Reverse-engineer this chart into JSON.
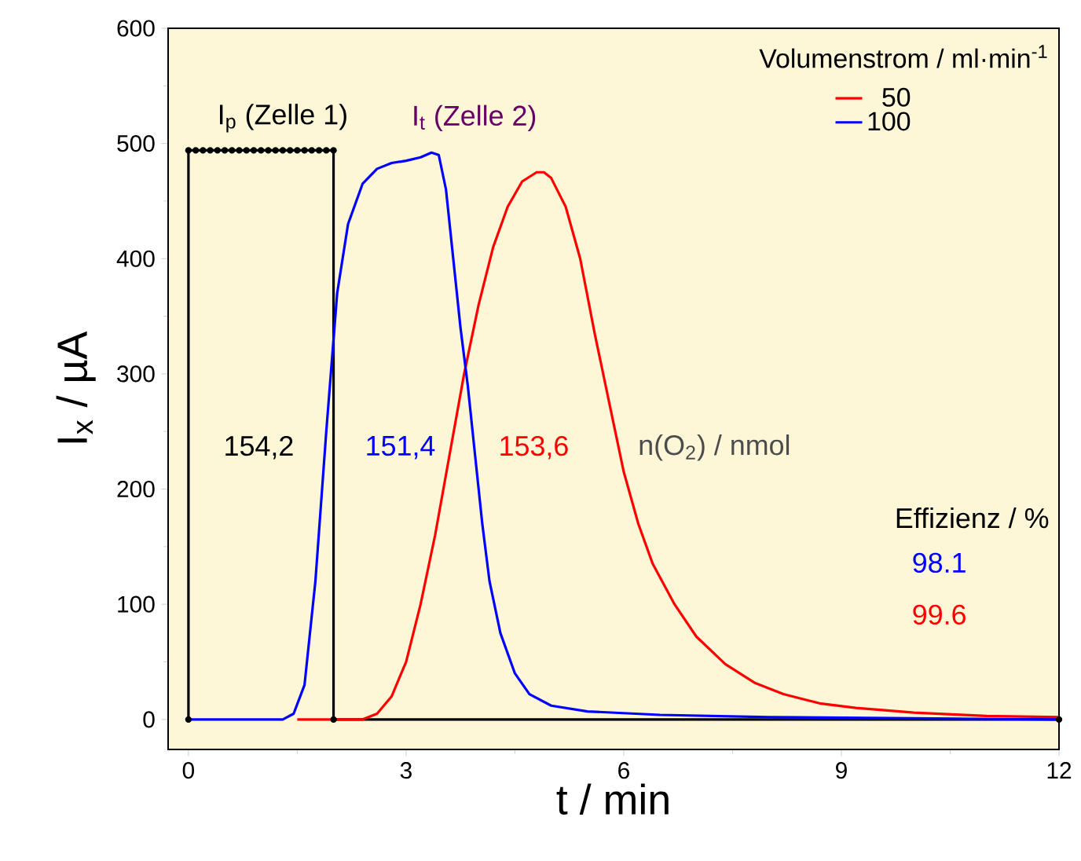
{
  "chart_data": {
    "type": "line",
    "xlabel": "t / min",
    "ylabel": "I$_{x}$ / µA",
    "legend_title": "Volumenstrom / ml·min$^{-1}$",
    "legend": "top right",
    "xlim": [
      -0.28,
      12
    ],
    "ylim": [
      -26,
      600
    ],
    "xticks": [
      0,
      3,
      6,
      9,
      12
    ],
    "yticks": [
      0,
      100,
      200,
      300,
      400,
      500,
      600
    ],
    "annotations": [
      "I$_{p}$ (Zelle 1)",
      "I$_{t}$ (Zelle 2)",
      "154,2",
      "151,4",
      "153,6",
      "n(O$_{2}$) / nmol",
      "Effizienz / %",
      "98.1",
      "99.6"
    ],
    "series": [
      {
        "color": "#000000",
        "marker": "circle",
        "x": [
          0,
          0,
          0.1,
          0.2,
          0.3,
          0.4,
          0.5,
          0.6,
          0.7,
          0.8,
          0.9,
          1.0,
          1.1,
          1.2,
          1.3,
          1.4,
          1.5,
          1.6,
          1.7,
          1.8,
          1.9,
          2,
          2,
          12
        ],
        "values": [
          0,
          494,
          494,
          494,
          494,
          494,
          494,
          494,
          494,
          494,
          494,
          494,
          494,
          494,
          494,
          494,
          494,
          494,
          494,
          494,
          494,
          494,
          0,
          0
        ]
      },
      {
        "name": "50",
        "color": "#ff0000",
        "x": [
          1.5,
          2.4,
          2.6,
          2.8,
          3.0,
          3.2,
          3.4,
          3.6,
          3.8,
          4.0,
          4.2,
          4.4,
          4.6,
          4.8,
          4.9,
          5.0,
          5.2,
          5.4,
          5.6,
          5.8,
          6.0,
          6.2,
          6.4,
          6.7,
          7.0,
          7.4,
          7.8,
          8.2,
          8.7,
          9.2,
          10,
          11,
          12
        ],
        "values": [
          0,
          0,
          5,
          20,
          50,
          100,
          160,
          230,
          300,
          360,
          410,
          445,
          467,
          475,
          475,
          470,
          445,
          400,
          335,
          275,
          215,
          170,
          135,
          100,
          72,
          48,
          32,
          22,
          14,
          10,
          6,
          3,
          2
        ]
      },
      {
        "name": "100",
        "color": "#0000ff",
        "x": [
          0,
          1.3,
          1.45,
          1.6,
          1.75,
          1.9,
          2.05,
          2.2,
          2.4,
          2.6,
          2.8,
          3.0,
          3.2,
          3.35,
          3.45,
          3.55,
          3.65,
          3.75,
          3.85,
          3.95,
          4.05,
          4.15,
          4.3,
          4.5,
          4.7,
          5.0,
          5.5,
          6.5,
          8,
          10,
          12
        ],
        "values": [
          0,
          0,
          5,
          30,
          120,
          250,
          370,
          430,
          465,
          478,
          483,
          485,
          488,
          492,
          490,
          460,
          400,
          340,
          290,
          230,
          170,
          120,
          75,
          40,
          22,
          12,
          7,
          4,
          2,
          1,
          0
        ]
      }
    ]
  }
}
